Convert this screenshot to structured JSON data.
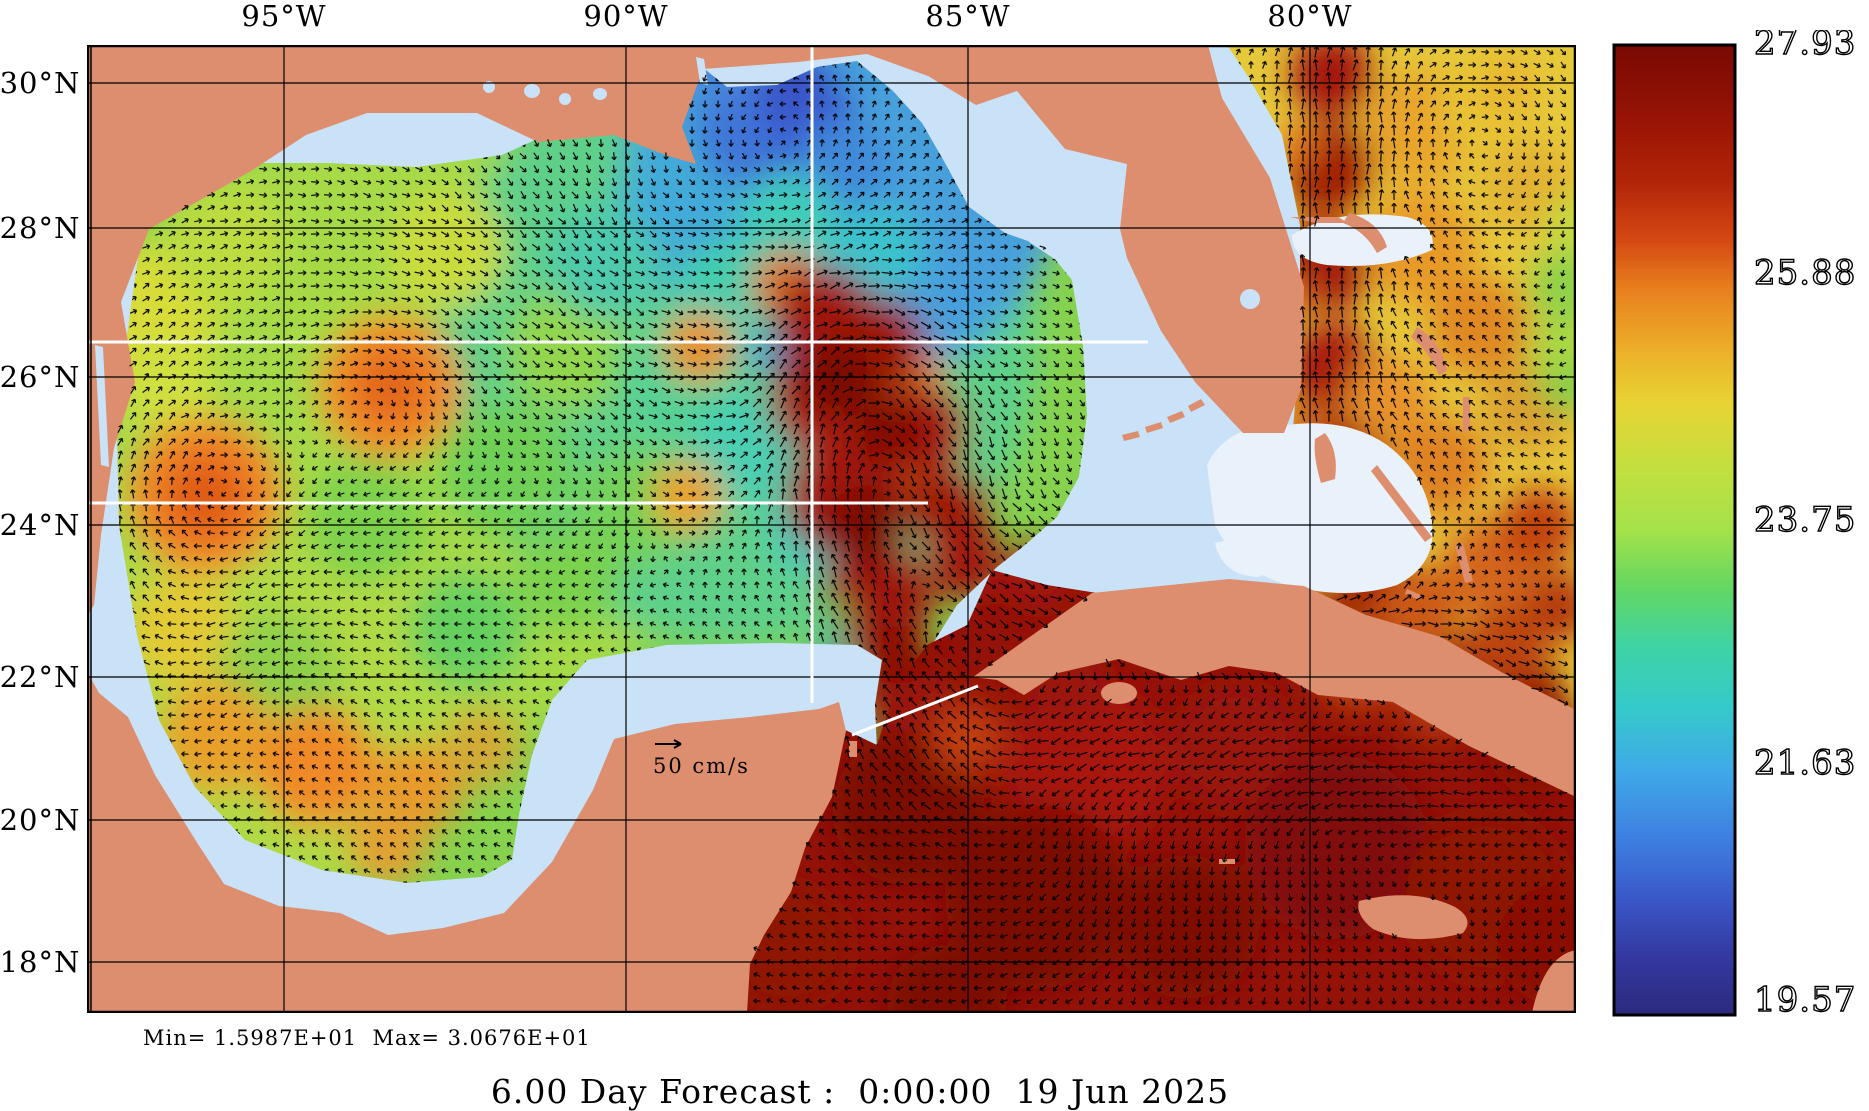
{
  "title": "6.00 Day Forecast :  0:00:00  19 Jun 2025",
  "stats": "Min= 1.5987E+01  Max= 3.0676E+01",
  "scale": {
    "label": "50 cm/s"
  },
  "axes": {
    "lon": [
      "95°W",
      "90°W",
      "85°W",
      "80°W"
    ],
    "lat": [
      "30°N",
      "28°N",
      "26°N",
      "24°N",
      "22°N",
      "20°N",
      "18°N"
    ]
  },
  "colorbar": {
    "ticks": [
      "27.93",
      "25.88",
      "23.75",
      "21.63",
      "19.57"
    ]
  },
  "colors": {
    "land": "#dd8e6e",
    "shelf_water": "#c9e2f7",
    "bank": "#e9f1fa",
    "colorbar_top": "#7a0a04",
    "colorbar_bottom": "#2c2a7e",
    "vector": "#000000",
    "section_line": "#ffffff"
  },
  "chart_data": {
    "type": "heatmap",
    "title": "6.00 Day Forecast :  0:00:00  19 Jun 2025",
    "field": "sea surface temperature with surface current vectors",
    "region": "Gulf of Mexico / Florida Straits / NW Caribbean / W Atlantic",
    "x_ticks": [
      "95W",
      "90W",
      "85W",
      "80W"
    ],
    "y_ticks": [
      "30N",
      "28N",
      "26N",
      "24N",
      "22N",
      "20N",
      "18N"
    ],
    "x_range_deg_west": [
      97.9,
      76.1
    ],
    "y_range_deg_north": [
      17.2,
      30.5
    ],
    "colorbar_ticks": [
      27.93,
      25.88,
      23.75,
      21.63,
      19.57
    ],
    "colorbar_range": [
      19.57,
      27.93
    ],
    "field_min": 15.987,
    "field_max": 30.676,
    "vector_scale_cm_s": 50,
    "grid": true,
    "legend_position": "right"
  }
}
